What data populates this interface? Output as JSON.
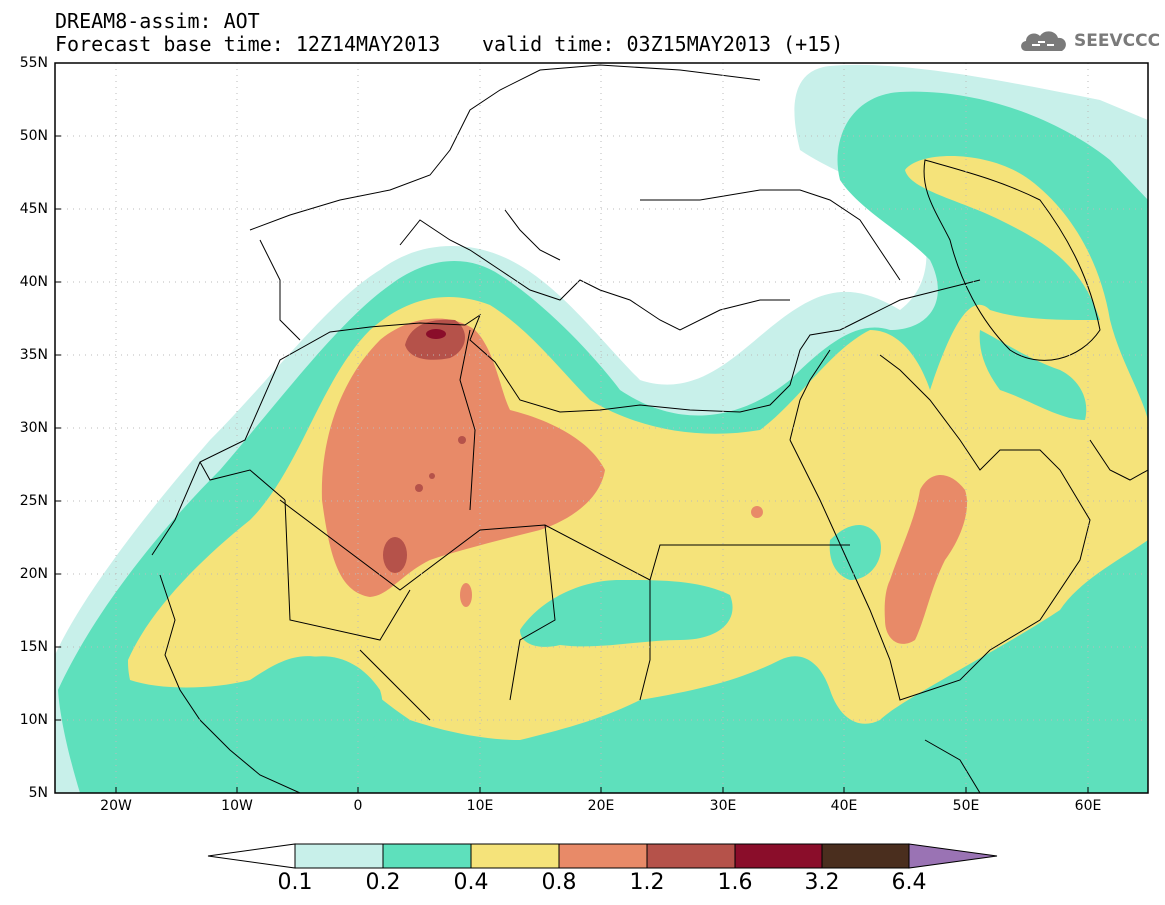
{
  "header": {
    "title_line1": "DREAM8-assim: AOT",
    "title_line2": "Forecast base time: 12Z14MAY2013",
    "valid_time": "valid time: 03Z15MAY2013 (+15)",
    "logo_text": "SEEVCCC"
  },
  "map": {
    "lat_labels": [
      "55N",
      "50N",
      "45N",
      "40N",
      "35N",
      "30N",
      "25N",
      "20N",
      "15N",
      "10N",
      "5N"
    ],
    "lon_labels": [
      "20W",
      "10W",
      "0",
      "10E",
      "20E",
      "30E",
      "40E",
      "50E",
      "60E"
    ],
    "lat_range": [
      5,
      55
    ],
    "lon_range": [
      -25,
      65
    ],
    "grid": "dotted"
  },
  "colorbar": {
    "levels": [
      "0.1",
      "0.2",
      "0.4",
      "0.8",
      "1.2",
      "1.6",
      "3.2",
      "6.4"
    ],
    "colors": [
      "#c8f0ea",
      "#5ee0bc",
      "#f5e37a",
      "#e88a68",
      "#b5524a",
      "#8a0d2a",
      "#4a2e1e",
      "#9a73b4"
    ],
    "under_color": "#ffffff"
  }
}
